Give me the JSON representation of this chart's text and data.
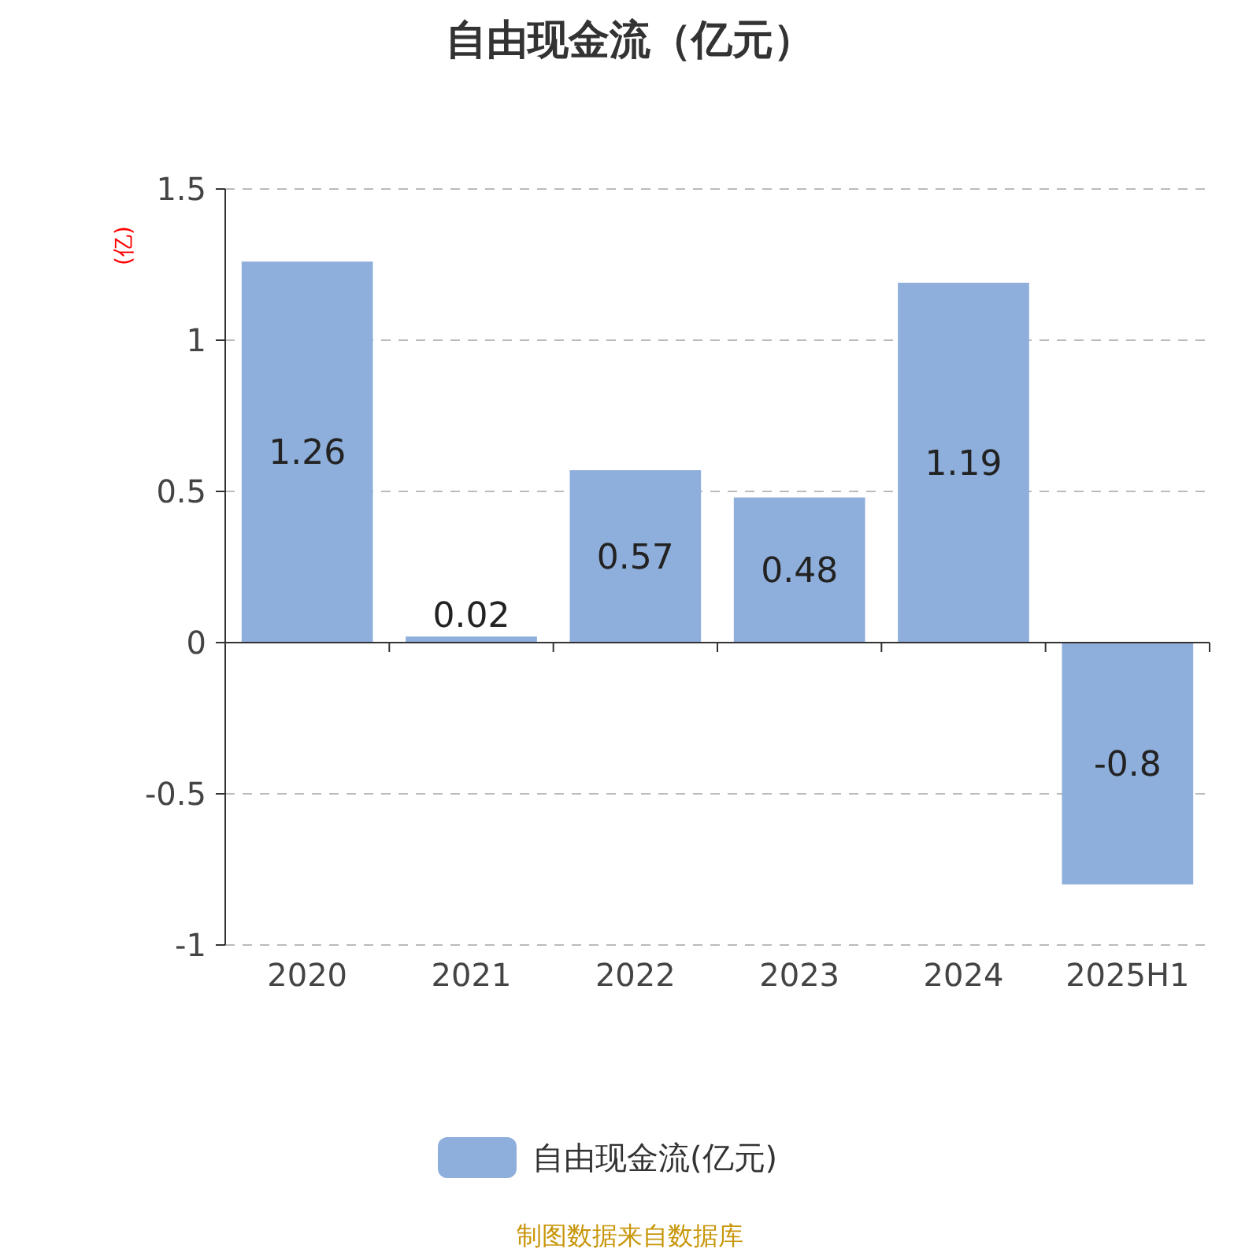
{
  "chart_data": {
    "type": "bar",
    "title": "自由现金流（亿元）",
    "ylabel": "(亿)",
    "categories": [
      "2020",
      "2021",
      "2022",
      "2023",
      "2024",
      "2025H1"
    ],
    "series": [
      {
        "name": "自由现金流(亿元)",
        "color": "#8eaedb",
        "values": [
          1.26,
          0.02,
          0.57,
          0.48,
          1.19,
          -0.8
        ]
      }
    ],
    "ylim": [
      -1,
      1.5
    ],
    "yticks": [
      -1,
      -0.5,
      0,
      0.5,
      1,
      1.5
    ],
    "grid": "y",
    "legend": "bottom",
    "data_labels": true,
    "annotations": [
      "制图数据来自数据库"
    ]
  }
}
